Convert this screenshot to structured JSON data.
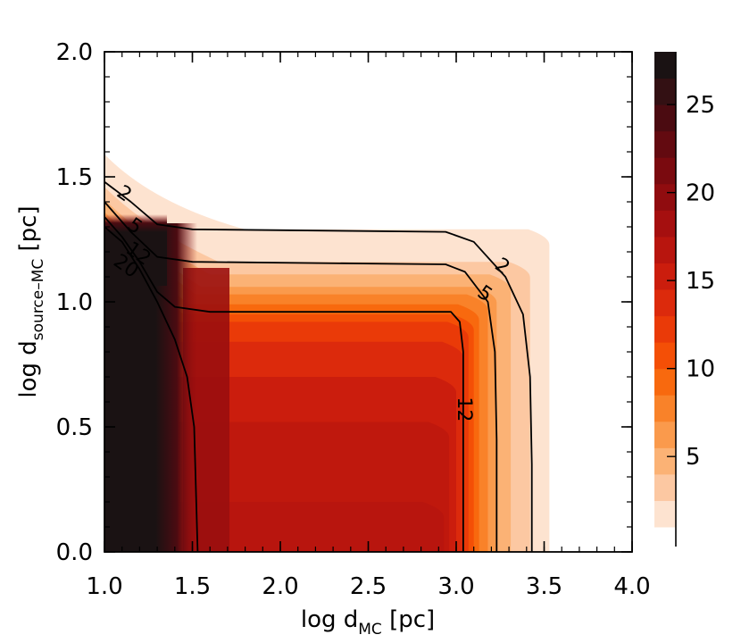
{
  "chart_data": {
    "type": "heatmap",
    "xlabel": {
      "main": "log d",
      "sub": "MC",
      "unit": "[pc]"
    },
    "ylabel": {
      "main": "log d",
      "sub": "source–MC",
      "unit": "[pc]"
    },
    "xlim": [
      1.0,
      4.0
    ],
    "ylim": [
      0.0,
      2.0
    ],
    "x_ticks": [
      "1.0",
      "1.5",
      "2.0",
      "2.5",
      "3.0",
      "3.5",
      "4.0"
    ],
    "y_ticks": [
      "0.0",
      "0.5",
      "1.0",
      "1.5",
      "2.0"
    ],
    "colorbar": {
      "range": [
        1,
        28
      ],
      "ticks": [
        "5",
        "10",
        "15",
        "20",
        "25"
      ],
      "levels": [
        {
          "from": 1.0,
          "to": 2.5,
          "color": "#fde3d0"
        },
        {
          "from": 2.5,
          "to": 4.0,
          "color": "#fcc8a2"
        },
        {
          "from": 4.0,
          "to": 5.5,
          "color": "#fbb275"
        },
        {
          "from": 5.5,
          "to": 7.0,
          "color": "#fa9a4c"
        },
        {
          "from": 7.0,
          "to": 8.5,
          "color": "#f98229"
        },
        {
          "from": 8.5,
          "to": 10.0,
          "color": "#f8690e"
        },
        {
          "from": 10.0,
          "to": 11.5,
          "color": "#f44f06"
        },
        {
          "from": 11.5,
          "to": 13.0,
          "color": "#ea3a08"
        },
        {
          "from": 13.0,
          "to": 14.5,
          "color": "#dc2a0c"
        },
        {
          "from": 14.5,
          "to": 16.0,
          "color": "#cb1d0d"
        },
        {
          "from": 16.0,
          "to": 17.5,
          "color": "#b8150e"
        },
        {
          "from": 17.5,
          "to": 19.0,
          "color": "#a50f0f"
        },
        {
          "from": 19.0,
          "to": 20.5,
          "color": "#900c0f"
        },
        {
          "from": 20.5,
          "to": 22.0,
          "color": "#7a0a0f"
        },
        {
          "from": 22.0,
          "to": 23.5,
          "color": "#630a10"
        },
        {
          "from": 23.5,
          "to": 25.0,
          "color": "#4b0b11"
        },
        {
          "from": 25.0,
          "to": 26.5,
          "color": "#331013"
        },
        {
          "from": 26.5,
          "to": 28.0,
          "color": "#1a1213"
        }
      ]
    },
    "field_regions": [
      {
        "value": 1.8,
        "color": "#fde3d0",
        "xmax": 3.53,
        "ymax": 1.59,
        "corner": 0.8
      },
      {
        "value": 3.2,
        "color": "#fcc8a2",
        "xmax": 3.42,
        "ymax": 1.46,
        "corner": 0.65
      },
      {
        "value": 4.8,
        "color": "#fbb275",
        "xmax": 3.31,
        "ymax": 1.41,
        "corner": 0.6
      },
      {
        "value": 6.2,
        "color": "#fa9a4c",
        "xmax": 3.23,
        "ymax": 1.36,
        "corner": 0.55
      },
      {
        "value": 7.8,
        "color": "#f98229",
        "xmax": 3.18,
        "ymax": 1.33,
        "corner": 0.52
      },
      {
        "value": 9.2,
        "color": "#f8690e",
        "xmax": 3.13,
        "ymax": 1.29,
        "corner": 0.48
      },
      {
        "value": 10.8,
        "color": "#f44f06",
        "xmax": 3.1,
        "ymax": 1.25,
        "corner": 0.45
      },
      {
        "value": 12.2,
        "color": "#ea3a08",
        "xmax": 3.07,
        "ymax": 1.22,
        "corner": 0.42
      },
      {
        "value": 13.8,
        "color": "#dc2a0c",
        "xmax": 3.04,
        "ymax": 1.14,
        "corner": 0.33
      },
      {
        "value": 15.2,
        "color": "#cb1d0d",
        "xmax": 3.0,
        "ymax": 1.0,
        "corner": 0.2
      },
      {
        "value": 16.5,
        "color": "#bf180d",
        "xmax": 2.96,
        "ymax": 0.82,
        "corner": 0.12
      },
      {
        "value": 17.0,
        "color": "#b8150e",
        "xmax": 2.93,
        "ymax": 0.5,
        "corner": 0.08
      }
    ],
    "contours": [
      {
        "level": "2",
        "points": [
          [
            1.0,
            1.48
          ],
          [
            1.15,
            1.4
          ],
          [
            1.3,
            1.31
          ],
          [
            1.5,
            1.29
          ],
          [
            2.94,
            1.28
          ],
          [
            3.1,
            1.24
          ],
          [
            3.28,
            1.1
          ],
          [
            3.38,
            0.95
          ],
          [
            3.42,
            0.7
          ],
          [
            3.43,
            0.35
          ],
          [
            3.43,
            0.0
          ]
        ]
      },
      {
        "level": "5",
        "points": [
          [
            1.0,
            1.4
          ],
          [
            1.15,
            1.28
          ],
          [
            1.3,
            1.18
          ],
          [
            1.5,
            1.16
          ],
          [
            2.94,
            1.15
          ],
          [
            3.05,
            1.12
          ],
          [
            3.18,
            1.0
          ],
          [
            3.22,
            0.8
          ],
          [
            3.23,
            0.45
          ],
          [
            3.23,
            0.0
          ]
        ]
      },
      {
        "level": "12",
        "points": [
          [
            1.0,
            1.34
          ],
          [
            1.1,
            1.26
          ],
          [
            1.2,
            1.16
          ],
          [
            1.3,
            1.04
          ],
          [
            1.4,
            0.98
          ],
          [
            1.6,
            0.96
          ],
          [
            2.97,
            0.96
          ],
          [
            3.02,
            0.92
          ],
          [
            3.04,
            0.8
          ],
          [
            3.04,
            0.45
          ],
          [
            3.04,
            0.0
          ]
        ]
      },
      {
        "level": "20",
        "points": [
          [
            1.0,
            1.3
          ],
          [
            1.1,
            1.24
          ],
          [
            1.2,
            1.13
          ],
          [
            1.3,
            1.0
          ],
          [
            1.4,
            0.85
          ],
          [
            1.47,
            0.7
          ],
          [
            1.51,
            0.5
          ],
          [
            1.52,
            0.25
          ],
          [
            1.53,
            0.0
          ]
        ]
      }
    ],
    "contour_labels": [
      {
        "text": "2",
        "x": 1.11,
        "y": 1.43
      },
      {
        "text": "5",
        "x": 1.17,
        "y": 1.3
      },
      {
        "text": "12",
        "x": 1.19,
        "y": 1.19
      },
      {
        "text": "20",
        "x": 1.12,
        "y": 1.14
      },
      {
        "text": "2",
        "x": 3.26,
        "y": 1.14
      },
      {
        "text": "5",
        "x": 3.16,
        "y": 1.03
      },
      {
        "text": "12",
        "x": 3.04,
        "y": 0.57
      }
    ]
  }
}
